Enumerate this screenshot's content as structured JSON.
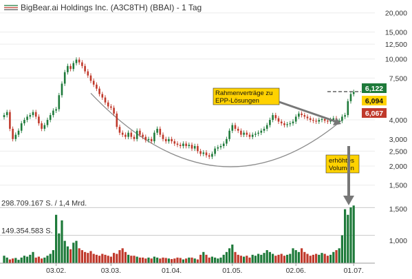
{
  "header": {
    "title": "BigBear.ai Holdings Inc. (A3C8TH) (BBAI) - 1 Tag"
  },
  "colors": {
    "up": "#1e7a3a",
    "down": "#c0392b",
    "vol_up": "#1e7a3a",
    "vol_down": "#c0392b",
    "arc": "#8c8c8c",
    "annotation_bg": "#ffd200",
    "gray_arrow": "#777777",
    "badge_high": "#1e7a3a",
    "badge_last": "#ffd200",
    "badge_low": "#c0392b",
    "dashed": "#888888"
  },
  "chart_data": [
    {
      "type": "candlestick",
      "title": "BigBear.ai Holdings Inc. (A3C8TH) (BBAI) - 1 Tag",
      "y_scale": "log",
      "ylim": [
        1.45,
        21
      ],
      "y_ticks": [
        {
          "value": 20,
          "label": "20,000"
        },
        {
          "value": 15,
          "label": "15,000"
        },
        {
          "value": 12.5,
          "label": "12,500"
        },
        {
          "value": 10,
          "label": "10,000"
        },
        {
          "value": 7.5,
          "label": "7,500"
        },
        {
          "value": 4,
          "label": "4,000"
        },
        {
          "value": 3,
          "label": "3,000"
        },
        {
          "value": 2.5,
          "label": "2,500"
        },
        {
          "value": 2,
          "label": "2,000"
        },
        {
          "value": 1.5,
          "label": "1,500"
        }
      ],
      "x_ticks": [
        {
          "index": 18,
          "label": "03.02."
        },
        {
          "index": 37,
          "label": "03.03."
        },
        {
          "index": 58,
          "label": "01.04."
        },
        {
          "index": 79,
          "label": "01.05."
        },
        {
          "index": 101,
          "label": "02.06."
        },
        {
          "index": 121,
          "label": "01.07."
        }
      ],
      "price_badges": [
        {
          "value": 6.122,
          "label": "6,122",
          "kind": "high"
        },
        {
          "value": 6.094,
          "label": "6,094",
          "kind": "last"
        },
        {
          "value": 6.067,
          "label": "6,067",
          "kind": "low"
        }
      ],
      "annotations": [
        {
          "text": "Rahmenverträge zu EPP-Lösungen"
        },
        {
          "text": "erhöhtes Volumen"
        }
      ],
      "closes": [
        4.3,
        4.5,
        3.5,
        3.0,
        3.2,
        3.4,
        3.8,
        4.0,
        4.2,
        4.3,
        4.5,
        4.2,
        3.8,
        3.5,
        3.7,
        4.0,
        4.3,
        4.6,
        4.7,
        5.8,
        6.9,
        8.2,
        9.0,
        8.6,
        9.4,
        9.9,
        9.5,
        9.0,
        8.3,
        7.8,
        7.2,
        6.8,
        6.4,
        5.9,
        5.6,
        5.2,
        4.9,
        4.8,
        4.4,
        3.6,
        3.3,
        3.2,
        3.1,
        3.3,
        3.1,
        3.0,
        3.4,
        3.2,
        3.1,
        2.95,
        3.0,
        2.9,
        3.3,
        3.5,
        3.2,
        3.0,
        2.9,
        3.0,
        2.9,
        2.8,
        2.75,
        2.7,
        2.8,
        2.7,
        2.75,
        2.6,
        2.7,
        2.5,
        2.4,
        2.45,
        2.35,
        2.3,
        2.4,
        2.6,
        2.65,
        2.7,
        2.8,
        3.0,
        3.4,
        3.7,
        3.5,
        3.4,
        3.2,
        3.3,
        3.2,
        3.1,
        3.2,
        3.25,
        3.3,
        3.4,
        3.5,
        3.7,
        4.0,
        4.3,
        4.1,
        3.9,
        3.8,
        3.7,
        3.75,
        3.8,
        3.9,
        4.2,
        4.4,
        4.3,
        4.2,
        4.1,
        4.0,
        3.95,
        3.9,
        4.0,
        4.05,
        3.95,
        3.9,
        4.0,
        4.1,
        3.9,
        3.95,
        4.2,
        4.3,
        5.3,
        5.9,
        6.09
      ],
      "volumes_millions": [
        40,
        30,
        20,
        25,
        28,
        18,
        30,
        40,
        35,
        45,
        60,
        30,
        35,
        25,
        30,
        40,
        50,
        70,
        260,
        160,
        230,
        120,
        90,
        75,
        110,
        120,
        80,
        70,
        60,
        55,
        65,
        50,
        45,
        40,
        50,
        45,
        40,
        35,
        55,
        50,
        70,
        80,
        60,
        45,
        40,
        40,
        35,
        30,
        30,
        25,
        30,
        25,
        35,
        30,
        25,
        30,
        28,
        25,
        22,
        25,
        30,
        28,
        20,
        25,
        30,
        30,
        25,
        20,
        45,
        60,
        45,
        30,
        35,
        30,
        25,
        30,
        45,
        60,
        80,
        100,
        60,
        45,
        40,
        35,
        40,
        30,
        45,
        40,
        50,
        45,
        55,
        70,
        60,
        50,
        40,
        45,
        50,
        40,
        45,
        50,
        80,
        70,
        60,
        80,
        60,
        50,
        40,
        45,
        50,
        45,
        55,
        50,
        40,
        45,
        60,
        70,
        80,
        150,
        290,
        260,
        300,
        310
      ],
      "volume_labels": [
        {
          "value": 298.709167,
          "label": "298.709.167 S. / 1,4 Mrd."
        },
        {
          "value": 149.354583,
          "label": "149.354.583 S."
        }
      ],
      "volume_axis_ticks": [
        {
          "value": 1.5,
          "label": "1,500"
        },
        {
          "value": 1.0,
          "label": "1,000"
        }
      ],
      "trend_arc": {
        "from_index": 30,
        "to_index": 117,
        "bottom_value": 2.0
      }
    }
  ]
}
